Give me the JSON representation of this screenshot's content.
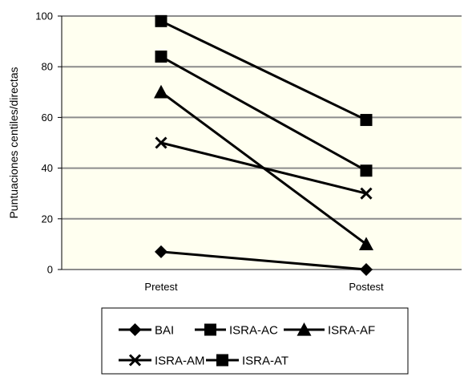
{
  "chart_data": {
    "type": "line",
    "categories": [
      "Pretest",
      "Postest"
    ],
    "ylabel": "Puntuaciones centiles/directas",
    "ylim": [
      0,
      100
    ],
    "yticks": [
      0,
      20,
      40,
      60,
      80,
      100
    ],
    "grid": true,
    "legend_position": "bottom",
    "plot_background": "#fffff0",
    "series": [
      {
        "name": "BAI",
        "marker": "diamond",
        "values": [
          7,
          0
        ]
      },
      {
        "name": "ISRA-AC",
        "marker": "square",
        "values": [
          84,
          39
        ]
      },
      {
        "name": "ISRA-AF",
        "marker": "triangle",
        "values": [
          70,
          10
        ]
      },
      {
        "name": "ISRA-AM",
        "marker": "x",
        "values": [
          50,
          30
        ]
      },
      {
        "name": "ISRA-AT",
        "marker": "square",
        "values": [
          98,
          59
        ]
      }
    ]
  }
}
